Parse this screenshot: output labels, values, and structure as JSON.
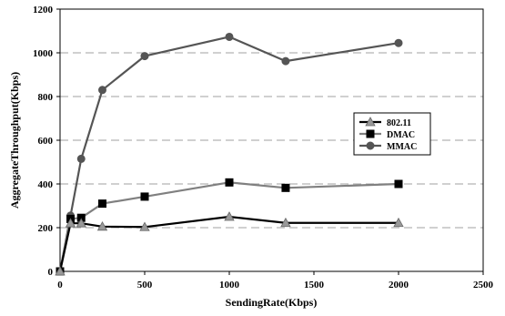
{
  "chart_data": {
    "type": "line",
    "title": "",
    "xlabel": "SendingRate(Kbps)",
    "ylabel": "AggregateThroughput(Kbps)",
    "xlim": [
      0,
      2500
    ],
    "ylim": [
      0,
      1200
    ],
    "xticks": [
      0,
      500,
      1000,
      1500,
      2000,
      2500
    ],
    "yticks": [
      0,
      200,
      400,
      600,
      800,
      1000,
      1200
    ],
    "grid": "horizontal-dashed",
    "legend_position": "right",
    "series": [
      {
        "name": "802.11",
        "color": "#000000",
        "marker": "triangle",
        "marker_color": "#999999",
        "points": [
          [
            0,
            0
          ],
          [
            62,
            220
          ],
          [
            125,
            220
          ],
          [
            250,
            205
          ],
          [
            500,
            203
          ],
          [
            1000,
            250
          ],
          [
            1333,
            222
          ],
          [
            2000,
            222
          ]
        ]
      },
      {
        "name": "DMAC",
        "color": "#808080",
        "marker": "square",
        "marker_color": "#000000",
        "points": [
          [
            0,
            0
          ],
          [
            62,
            240
          ],
          [
            125,
            245
          ],
          [
            250,
            310
          ],
          [
            500,
            342
          ],
          [
            1000,
            407
          ],
          [
            1333,
            382
          ],
          [
            2000,
            400
          ]
        ]
      },
      {
        "name": "MMAC",
        "color": "#555555",
        "marker": "circle",
        "marker_color": "#555555",
        "points": [
          [
            0,
            0
          ],
          [
            62,
            255
          ],
          [
            125,
            515
          ],
          [
            250,
            830
          ],
          [
            500,
            985
          ],
          [
            1000,
            1073
          ],
          [
            1333,
            962
          ],
          [
            2000,
            1045
          ]
        ]
      }
    ]
  }
}
